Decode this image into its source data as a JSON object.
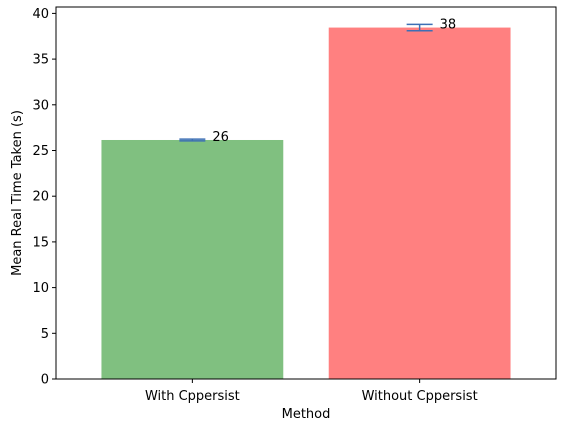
{
  "chart_data": {
    "type": "bar",
    "title": "",
    "xlabel": "Method",
    "ylabel": "Mean Real Time Taken (s)",
    "categories": [
      "With Cppersist",
      "Without Cppersist"
    ],
    "values": [
      26.15,
      38.45
    ],
    "errors": [
      0.1,
      0.35
    ],
    "data_labels": [
      "26",
      "38"
    ],
    "colors": [
      "#80c080",
      "#ff8080"
    ],
    "error_color": "#3d6fb5",
    "ylim": [
      0,
      40.7
    ],
    "yticks": [
      0,
      5,
      10,
      15,
      20,
      25,
      30,
      35,
      40
    ],
    "ytick_labels": [
      "0",
      "5",
      "10",
      "15",
      "20",
      "25",
      "30",
      "35",
      "40"
    ],
    "grid": false,
    "legend": "none"
  }
}
